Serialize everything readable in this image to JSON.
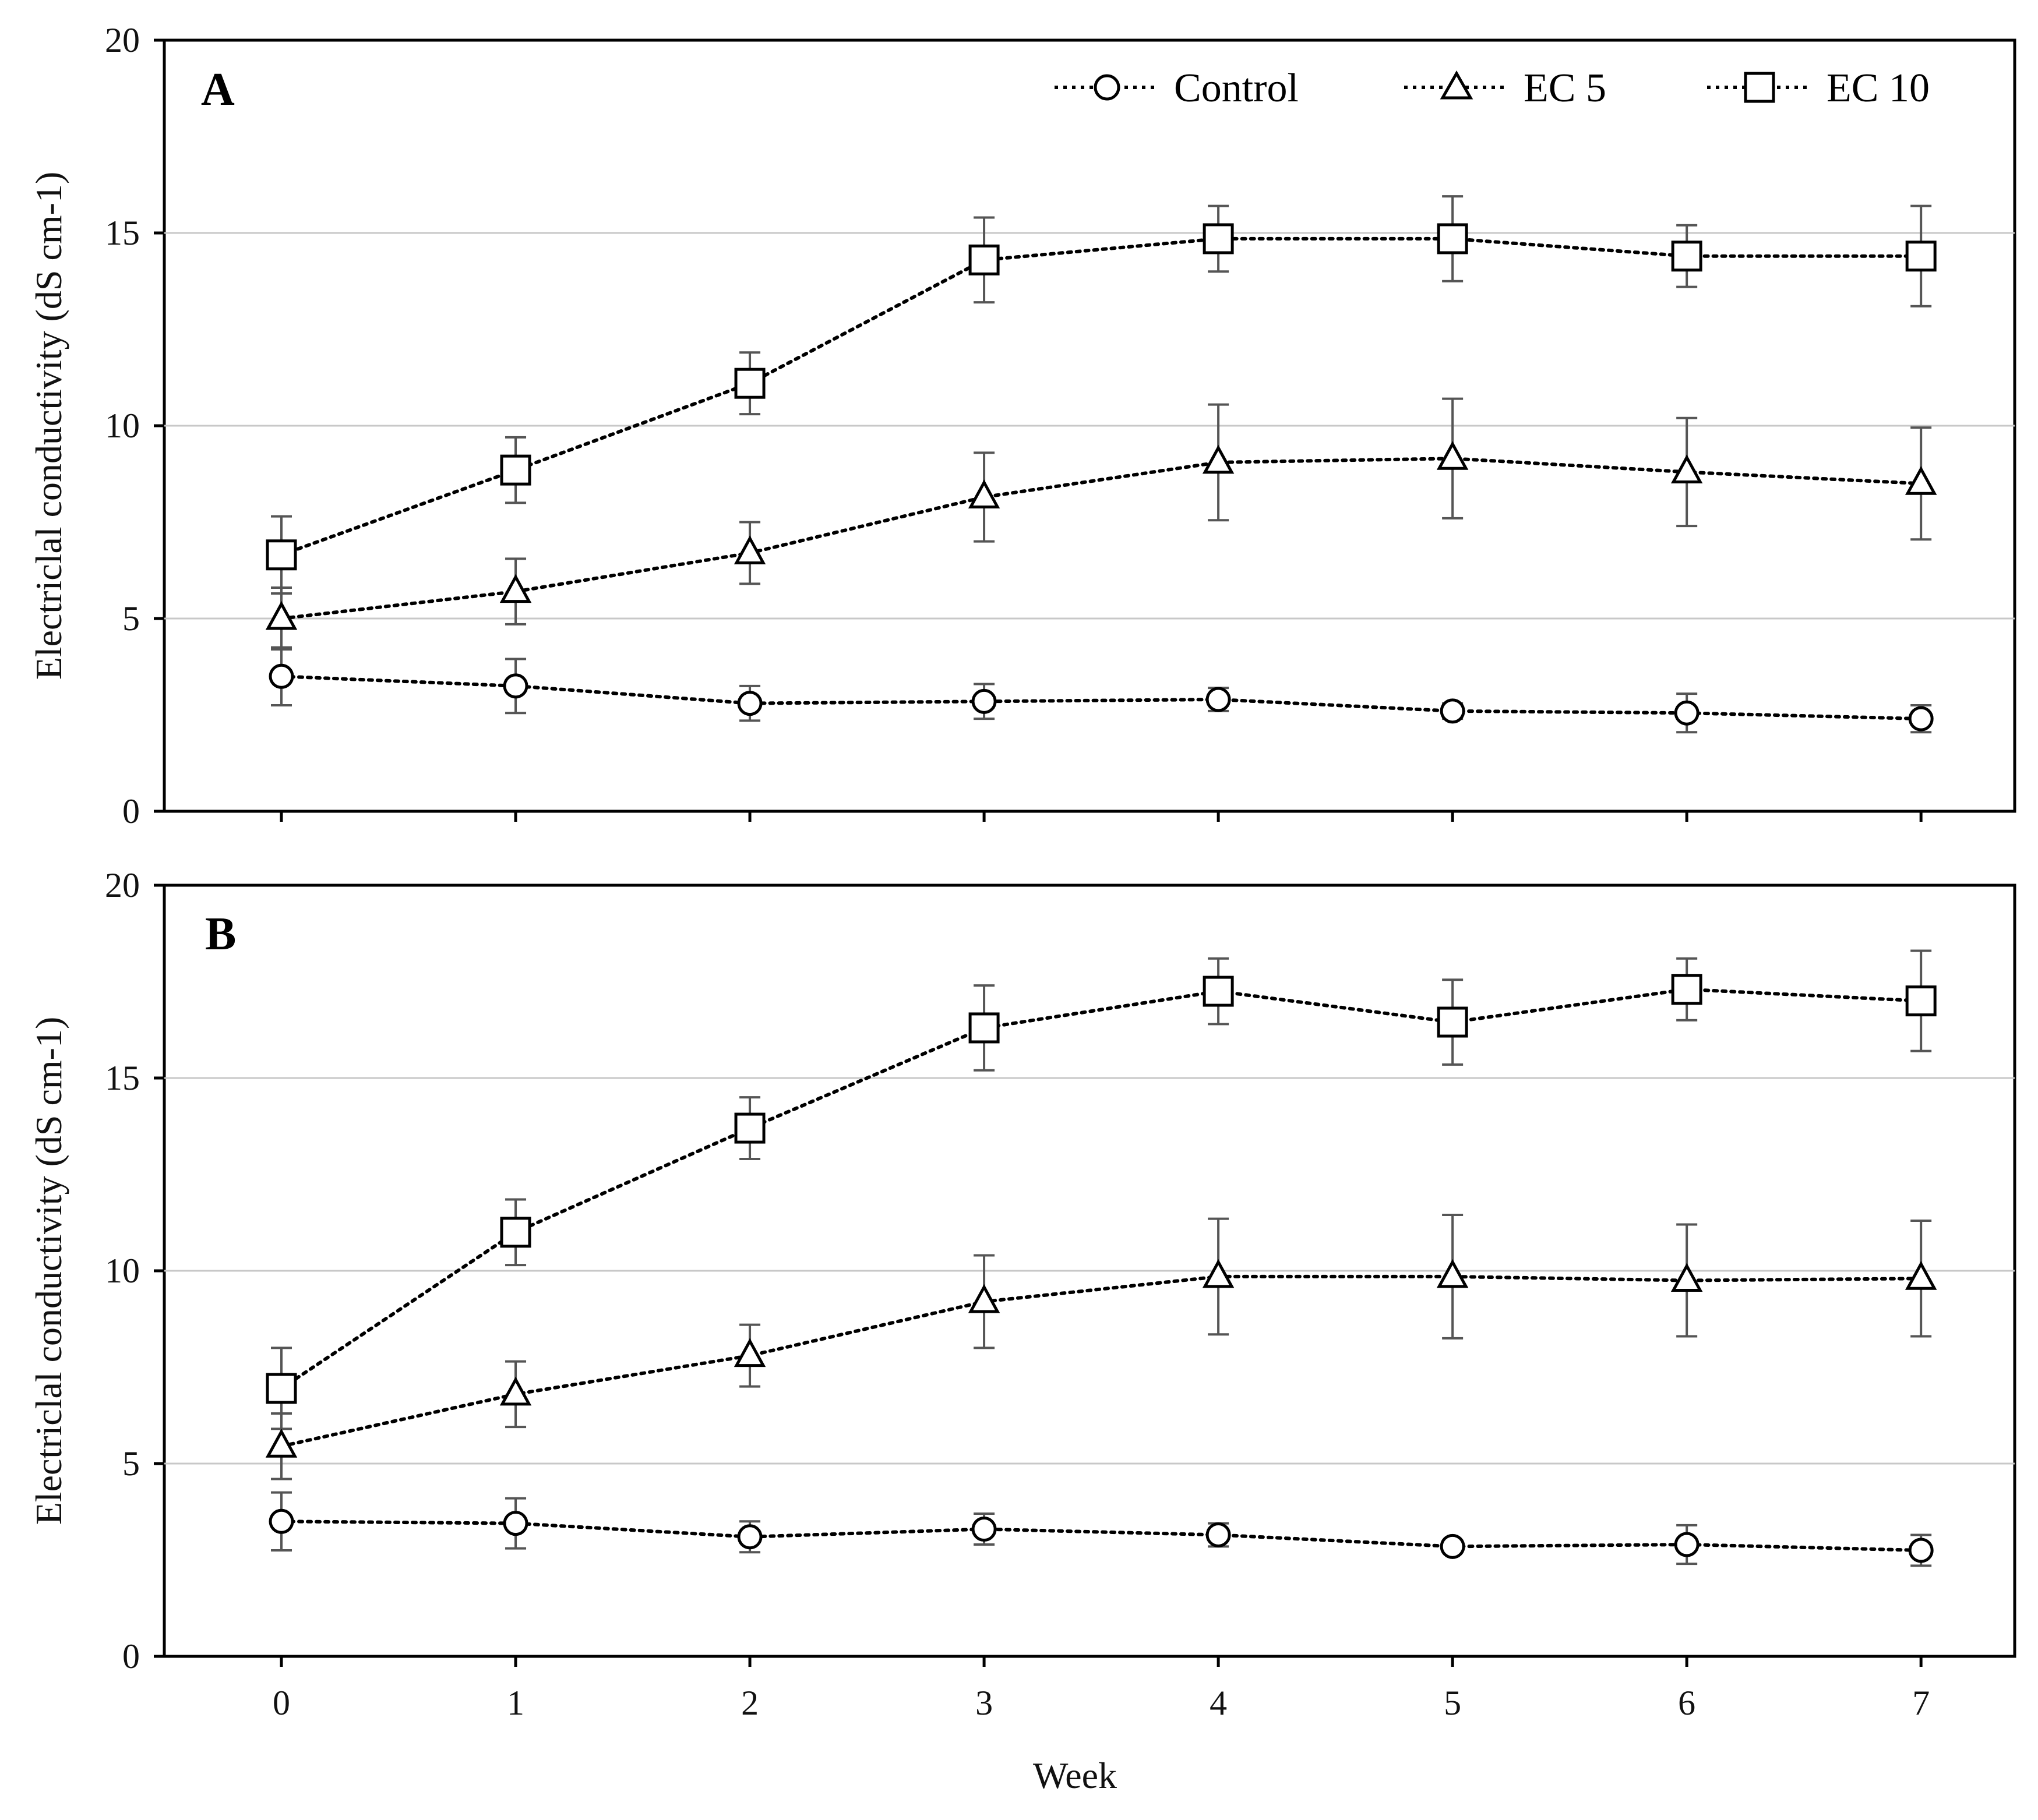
{
  "colors": {
    "gridline": "#c8c8c8",
    "axis": "#000000",
    "errorbar": "#555555",
    "marker_fill": "#ffffff"
  },
  "legend": [
    {
      "name": "Control",
      "marker": "circle"
    },
    {
      "name": "EC 5",
      "marker": "triangle"
    },
    {
      "name": "EC 10",
      "marker": "square"
    }
  ],
  "chart_data": [
    {
      "type": "line",
      "panel": "A",
      "ylabel": "Electriclal conductivity (dS cm-1)",
      "ylim": [
        0,
        20
      ],
      "yticks": [
        0,
        5,
        10,
        15,
        20
      ],
      "gridlines": [
        5,
        10,
        15
      ],
      "x": [
        0,
        1,
        2,
        3,
        4,
        5,
        6,
        7
      ],
      "series": [
        {
          "name": "Control",
          "marker": "circle",
          "values": [
            3.5,
            3.25,
            2.8,
            2.85,
            2.9,
            2.6,
            2.55,
            2.4
          ],
          "error": [
            0.75,
            0.7,
            0.45,
            0.45,
            0.3,
            0.2,
            0.5,
            0.35
          ]
        },
        {
          "name": "EC 5",
          "marker": "triangle",
          "values": [
            5.0,
            5.7,
            6.7,
            8.15,
            9.05,
            9.15,
            8.8,
            8.5
          ],
          "error": [
            0.8,
            0.85,
            0.8,
            1.15,
            1.5,
            1.55,
            1.4,
            1.45
          ]
        },
        {
          "name": "EC 10",
          "marker": "square",
          "values": [
            6.65,
            8.85,
            11.1,
            14.3,
            14.85,
            14.85,
            14.4,
            14.4
          ],
          "error": [
            1.0,
            0.85,
            0.8,
            1.1,
            0.85,
            1.1,
            0.8,
            1.3
          ]
        }
      ]
    },
    {
      "type": "line",
      "panel": "B",
      "xlabel": "Week",
      "ylabel": "Electriclal conductivity (dS cm-1)",
      "ylim": [
        0,
        20
      ],
      "yticks": [
        0,
        5,
        10,
        15,
        20
      ],
      "gridlines": [
        5,
        10,
        15
      ],
      "x": [
        0,
        1,
        2,
        3,
        4,
        5,
        6,
        7
      ],
      "xticks": [
        "0",
        "1",
        "2",
        "3",
        "4",
        "5",
        "6",
        "7"
      ],
      "series": [
        {
          "name": "Control",
          "marker": "circle",
          "values": [
            3.5,
            3.45,
            3.1,
            3.3,
            3.15,
            2.85,
            2.9,
            2.75
          ],
          "error": [
            0.75,
            0.65,
            0.4,
            0.4,
            0.3,
            0.15,
            0.5,
            0.4
          ]
        },
        {
          "name": "EC 5",
          "marker": "triangle",
          "values": [
            5.45,
            6.8,
            7.8,
            9.2,
            9.85,
            9.85,
            9.75,
            9.8
          ],
          "error": [
            0.85,
            0.85,
            0.8,
            1.2,
            1.5,
            1.6,
            1.45,
            1.5
          ]
        },
        {
          "name": "EC 10",
          "marker": "square",
          "values": [
            6.95,
            11.0,
            13.7,
            16.3,
            17.25,
            16.45,
            17.3,
            17.0
          ],
          "error": [
            1.05,
            0.85,
            0.8,
            1.1,
            0.85,
            1.1,
            0.8,
            1.3
          ]
        }
      ]
    }
  ]
}
